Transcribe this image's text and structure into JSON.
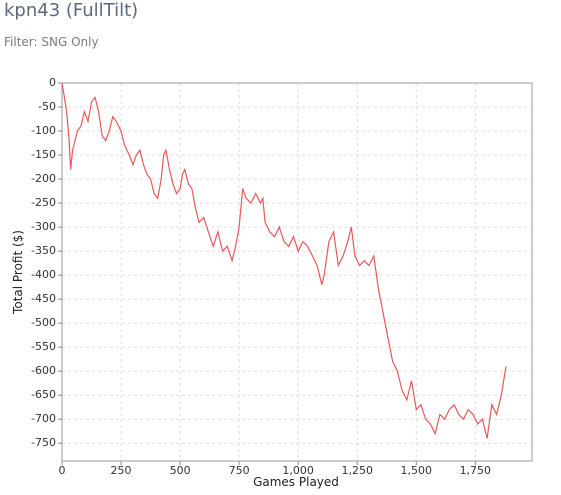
{
  "chart_data": {
    "type": "line",
    "title": "kpn43 (FullTilt)",
    "subtitle": "Filter: SNG Only",
    "x_label": "Games Played",
    "y_label": "Total Profit ($)",
    "grid": true,
    "xlim": [
      0,
      1990
    ],
    "ylim": [
      -787,
      0
    ],
    "xticks": [
      0,
      250,
      500,
      750,
      {
        "value": 1000,
        "label": "1,000"
      },
      {
        "value": 1250,
        "label": "1,250"
      },
      {
        "value": 1500,
        "label": "1,500"
      },
      {
        "value": 1750,
        "label": "1,750"
      }
    ],
    "yticks": [
      0,
      -50,
      -100,
      -150,
      -200,
      -250,
      -300,
      -350,
      -400,
      -450,
      -500,
      -550,
      -600,
      -650,
      -700,
      -750
    ],
    "series": [
      {
        "color": "#e8585a",
        "x": [
          0,
          10,
          20,
          30,
          37,
          45,
          55,
          65,
          80,
          95,
          110,
          125,
          140,
          155,
          170,
          185,
          200,
          215,
          230,
          250,
          265,
          285,
          300,
          315,
          330,
          345,
          360,
          375,
          390,
          405,
          420,
          430,
          440,
          455,
          470,
          485,
          500,
          510,
          520,
          535,
          550,
          565,
          580,
          600,
          620,
          640,
          660,
          680,
          700,
          720,
          735,
          750,
          765,
          780,
          800,
          820,
          840,
          850,
          860,
          880,
          900,
          920,
          940,
          960,
          980,
          1000,
          1020,
          1040,
          1060,
          1080,
          1100,
          1110,
          1130,
          1150,
          1170,
          1190,
          1210,
          1225,
          1240,
          1260,
          1280,
          1300,
          1320,
          1340,
          1360,
          1380,
          1400,
          1420,
          1440,
          1460,
          1480,
          1500,
          1520,
          1540,
          1560,
          1580,
          1600,
          1620,
          1640,
          1660,
          1680,
          1700,
          1720,
          1740,
          1760,
          1780,
          1800,
          1820,
          1840,
          1860,
          1880
        ],
        "values": [
          0,
          -30,
          -60,
          -120,
          -180,
          -140,
          -120,
          -100,
          -90,
          -60,
          -80,
          -40,
          -30,
          -60,
          -110,
          -120,
          -100,
          -70,
          -80,
          -100,
          -130,
          -150,
          -170,
          -150,
          -140,
          -170,
          -190,
          -200,
          -230,
          -240,
          -200,
          -150,
          -140,
          -180,
          -210,
          -230,
          -220,
          -190,
          -180,
          -210,
          -220,
          -260,
          -290,
          -280,
          -310,
          -340,
          -310,
          -350,
          -340,
          -370,
          -340,
          -300,
          -220,
          -240,
          -250,
          -230,
          -250,
          -240,
          -290,
          -310,
          -320,
          -300,
          -330,
          -340,
          -320,
          -350,
          -330,
          -340,
          -360,
          -380,
          -420,
          -400,
          -330,
          -310,
          -380,
          -360,
          -330,
          -300,
          -360,
          -380,
          -370,
          -380,
          -360,
          -430,
          -480,
          -530,
          -580,
          -600,
          -640,
          -660,
          -620,
          -680,
          -670,
          -700,
          -710,
          -730,
          -690,
          -700,
          -680,
          -670,
          -690,
          -700,
          -680,
          -690,
          -710,
          -700,
          -740,
          -670,
          -690,
          -650,
          -590
        ]
      }
    ]
  }
}
